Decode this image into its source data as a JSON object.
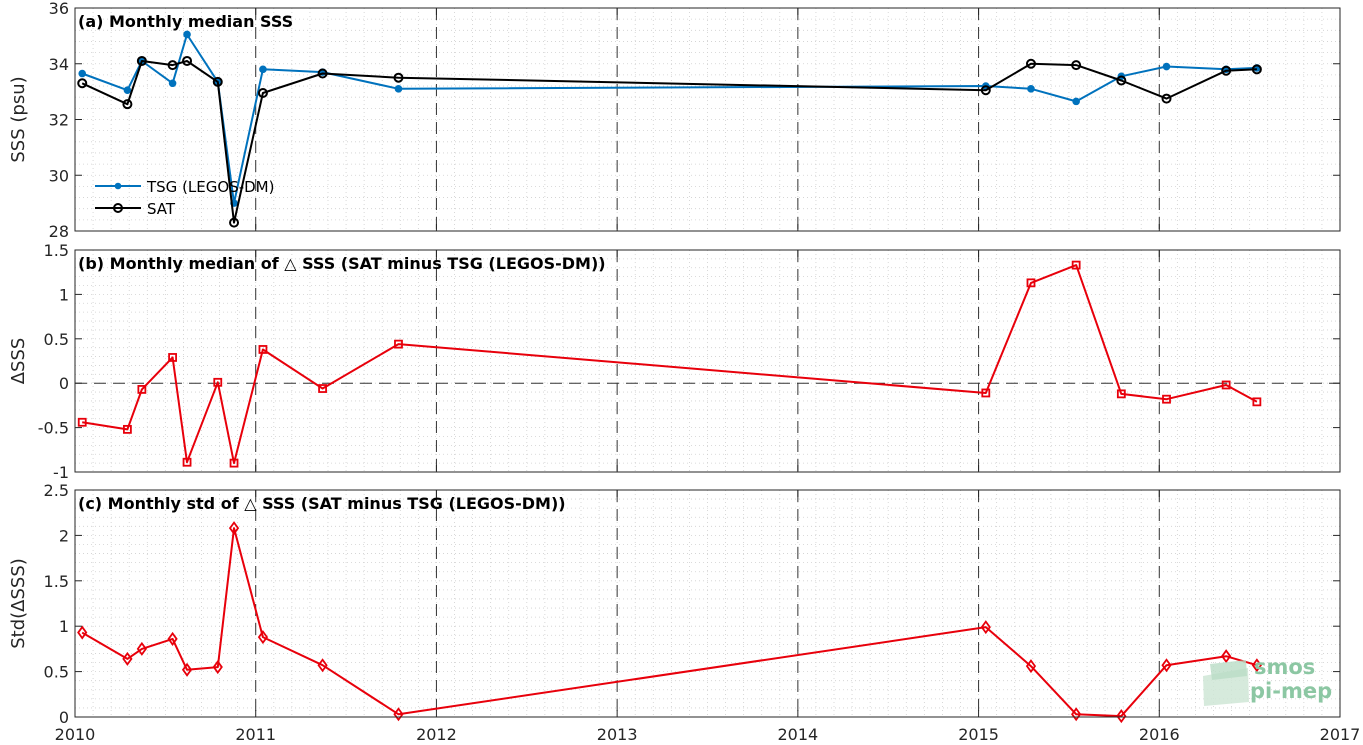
{
  "logo": {
    "line1": "smos",
    "line2": "pi-mep"
  },
  "colors": {
    "tsg": "#0072bd",
    "sat": "#000000",
    "delta": "#e8000b",
    "grid": "#cfcfcf",
    "axis": "#262626"
  },
  "x_axis": {
    "range": [
      2010,
      2017
    ],
    "ticks": [
      2010,
      2011,
      2012,
      2013,
      2014,
      2015,
      2016,
      2017
    ],
    "tick_labels": [
      "2010",
      "2011",
      "2012",
      "2013",
      "2014",
      "2015",
      "2016",
      "2017"
    ]
  },
  "chart_data": [
    {
      "type": "line",
      "title": "(a) Monthly median SSS",
      "ylabel": "SSS (psu)",
      "ylim": [
        28,
        36
      ],
      "yticks": [
        28,
        30,
        32,
        34,
        36
      ],
      "ytick_labels": [
        "28",
        "30",
        "32",
        "34",
        "36"
      ],
      "grid": true,
      "legend": "bottom-left",
      "series": [
        {
          "name": "TSG (LEGOS-DM)",
          "marker": "dot",
          "x": [
            2010.04,
            2010.29,
            2010.37,
            2010.54,
            2010.62,
            2010.79,
            2010.88,
            2011.04,
            2011.37,
            2011.79,
            2015.04,
            2015.29,
            2015.54,
            2015.79,
            2016.04,
            2016.37,
            2016.54
          ],
          "y": [
            33.65,
            33.05,
            34.1,
            33.3,
            35.05,
            33.35,
            29.0,
            33.8,
            33.7,
            33.1,
            33.2,
            33.1,
            32.65,
            33.55,
            33.9,
            33.8,
            33.85
          ]
        },
        {
          "name": "SAT",
          "marker": "circle",
          "x": [
            2010.04,
            2010.29,
            2010.37,
            2010.54,
            2010.62,
            2010.79,
            2010.88,
            2011.04,
            2011.37,
            2011.79,
            2015.04,
            2015.29,
            2015.54,
            2015.79,
            2016.04,
            2016.37,
            2016.54
          ],
          "y": [
            33.3,
            32.55,
            34.1,
            33.95,
            34.1,
            33.35,
            28.3,
            32.95,
            33.65,
            33.5,
            33.05,
            34.0,
            33.95,
            33.4,
            32.75,
            33.75,
            33.8
          ]
        }
      ]
    },
    {
      "type": "line",
      "title": "(b) Monthly median of △ SSS (SAT minus TSG (LEGOS-DM))",
      "ylabel": "ΔSSS",
      "ylim": [
        -1,
        1.5
      ],
      "yticks": [
        -1,
        -0.5,
        0,
        0.5,
        1,
        1.5
      ],
      "ytick_labels": [
        "-1",
        "-0.5",
        "0",
        "0.5",
        "1",
        "1.5"
      ],
      "zero_line": true,
      "grid": true,
      "series": [
        {
          "marker": "square",
          "x": [
            2010.04,
            2010.29,
            2010.37,
            2010.54,
            2010.62,
            2010.79,
            2010.88,
            2011.04,
            2011.37,
            2011.79,
            2015.04,
            2015.29,
            2015.54,
            2015.79,
            2016.04,
            2016.37,
            2016.54
          ],
          "y": [
            -0.44,
            -0.52,
            -0.07,
            0.29,
            -0.89,
            0.01,
            -0.9,
            0.38,
            -0.06,
            0.44,
            -0.11,
            1.13,
            1.33,
            -0.12,
            -0.18,
            -0.02,
            -0.21
          ]
        }
      ]
    },
    {
      "type": "line",
      "title": "(c) Monthly std of △ SSS (SAT minus TSG (LEGOS-DM))",
      "ylabel": "Std(ΔSSS)",
      "ylim": [
        0,
        2.5
      ],
      "yticks": [
        0,
        0.5,
        1,
        1.5,
        2,
        2.5
      ],
      "ytick_labels": [
        "0",
        "0.5",
        "1",
        "1.5",
        "2",
        "2.5"
      ],
      "grid": true,
      "series": [
        {
          "marker": "diamond",
          "x": [
            2010.04,
            2010.29,
            2010.37,
            2010.54,
            2010.62,
            2010.79,
            2010.88,
            2011.04,
            2011.37,
            2011.79,
            2015.04,
            2015.29,
            2015.54,
            2015.79,
            2016.04,
            2016.37,
            2016.54
          ],
          "y": [
            0.93,
            0.64,
            0.75,
            0.86,
            0.52,
            0.55,
            2.08,
            0.88,
            0.57,
            0.03,
            0.99,
            0.56,
            0.03,
            0.01,
            0.57,
            0.67,
            0.57
          ]
        }
      ]
    }
  ]
}
